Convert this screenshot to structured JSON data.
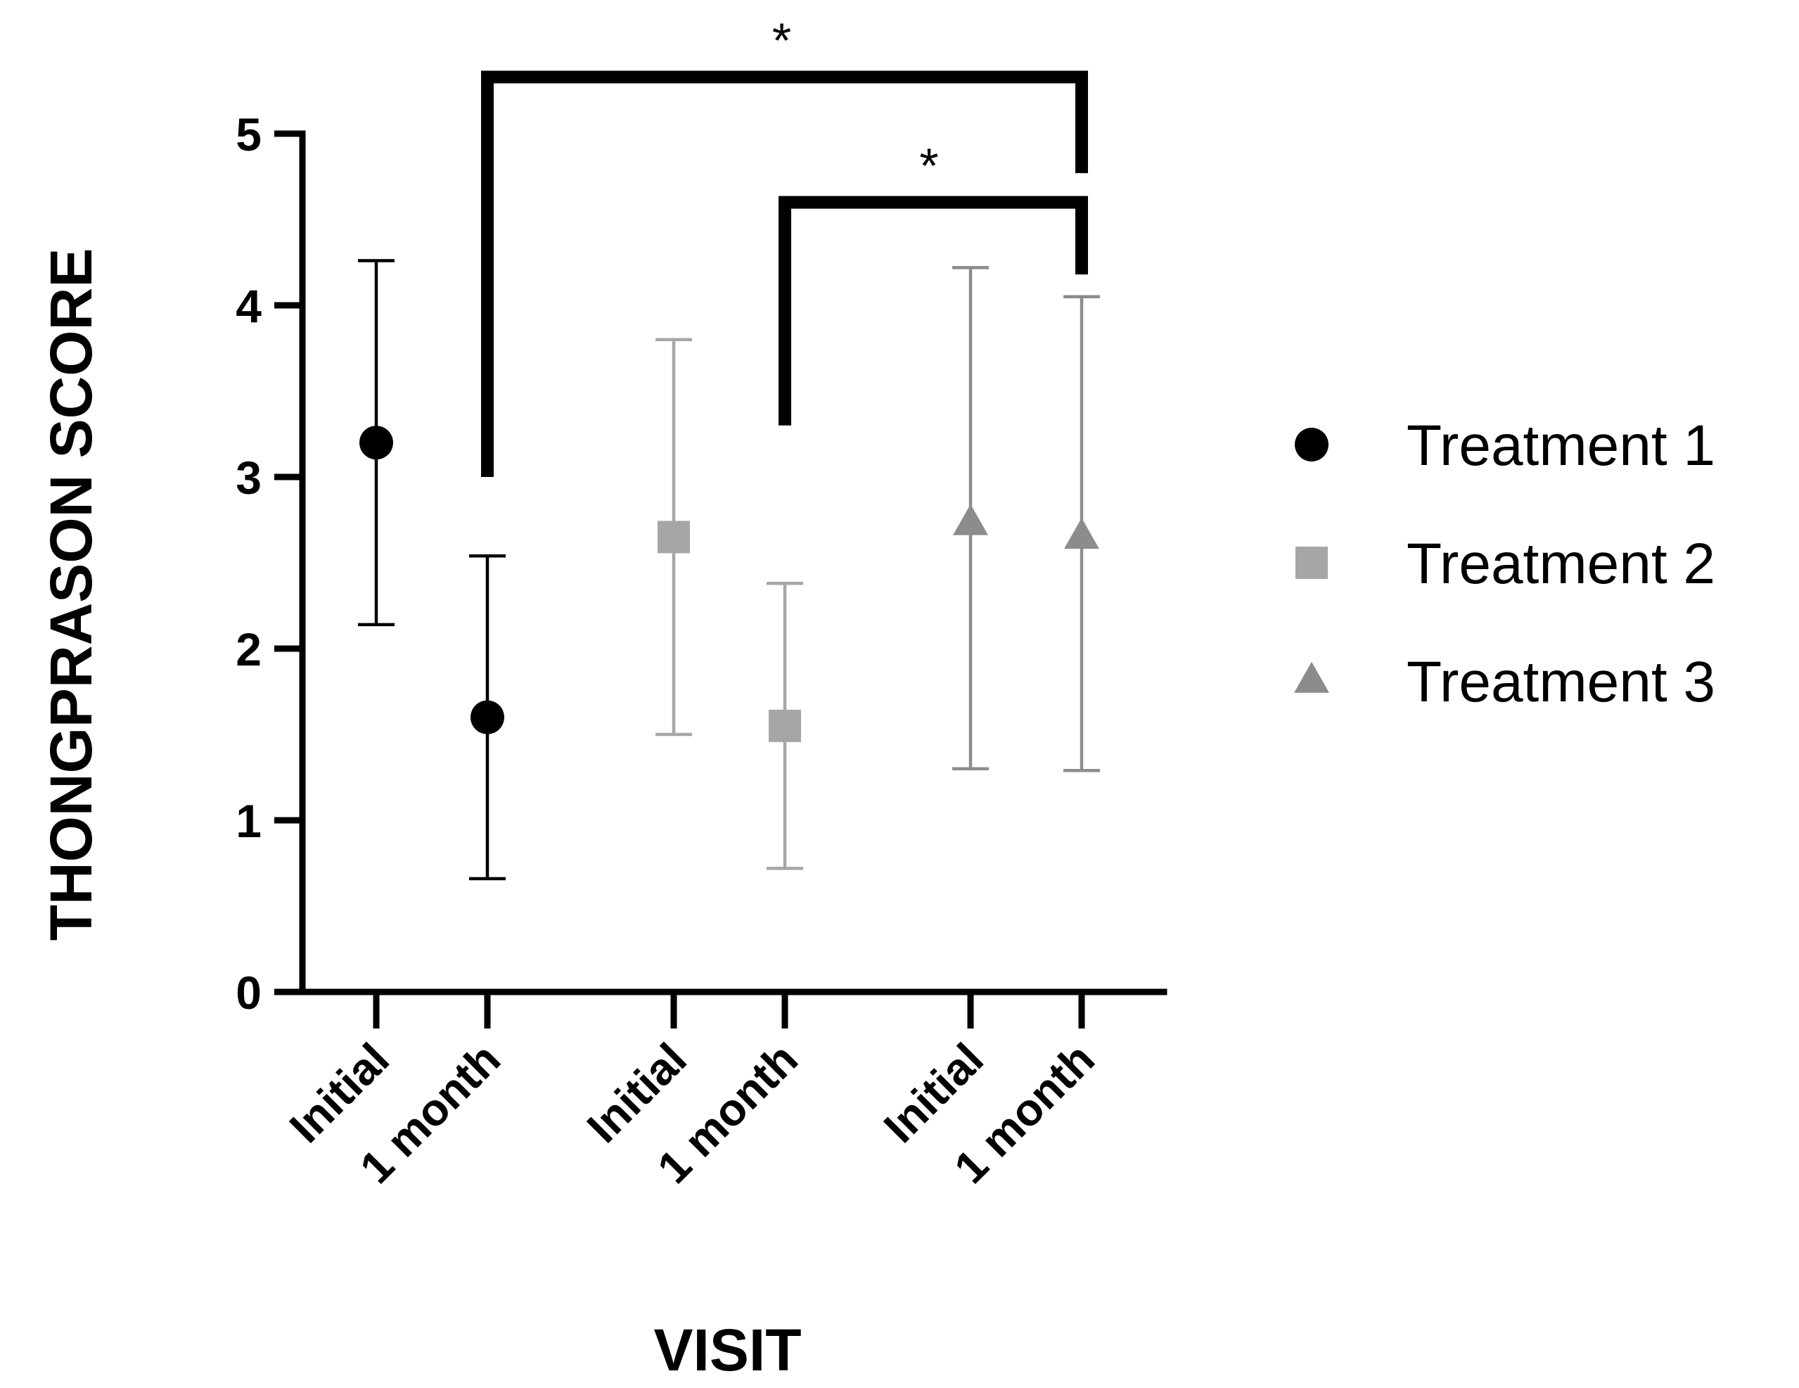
{
  "chart_data": {
    "type": "scatter",
    "subtype": "mean-with-error-bars",
    "title": "",
    "xlabel": "VISIT",
    "ylabel": "THONGPRASON SCORE",
    "ylim": [
      0,
      5
    ],
    "yticks": [
      "0",
      "1",
      "2",
      "3",
      "4",
      "5"
    ],
    "grid": false,
    "legend_position": "right",
    "categories": [
      "Initial",
      "1 month",
      "Initial",
      "1 month",
      "Initial",
      "1 month"
    ],
    "series": [
      {
        "name": "Treatment 1",
        "marker": "circle",
        "color": "#000000",
        "errorbar_color": "#000000",
        "points": [
          {
            "category_index": 0,
            "visit": "Initial",
            "mean": 3.2,
            "lower": 2.14,
            "upper": 4.26
          },
          {
            "category_index": 1,
            "visit": "1 month",
            "mean": 1.6,
            "lower": 0.66,
            "upper": 2.54
          }
        ]
      },
      {
        "name": "Treatment 2",
        "marker": "square",
        "color": "#a6a6a6",
        "errorbar_color": "#a6a6a6",
        "points": [
          {
            "category_index": 2,
            "visit": "Initial",
            "mean": 2.65,
            "lower": 1.5,
            "upper": 3.8
          },
          {
            "category_index": 3,
            "visit": "1 month",
            "mean": 1.55,
            "lower": 0.72,
            "upper": 2.38
          }
        ]
      },
      {
        "name": "Treatment 3",
        "marker": "triangle",
        "color": "#8c8c8c",
        "errorbar_color": "#8c8c8c",
        "points": [
          {
            "category_index": 4,
            "visit": "Initial",
            "mean": 2.73,
            "lower": 1.3,
            "upper": 4.22
          },
          {
            "category_index": 5,
            "visit": "1 month",
            "mean": 2.65,
            "lower": 1.29,
            "upper": 4.05
          }
        ]
      }
    ],
    "annotations": [
      {
        "type": "significance",
        "label": "*",
        "from_category_index": 1,
        "to_category_index": 5,
        "bar_level": 5.33
      },
      {
        "type": "significance",
        "label": "*",
        "from_category_index": 3,
        "to_category_index": 5,
        "bar_level": 4.6
      }
    ]
  }
}
